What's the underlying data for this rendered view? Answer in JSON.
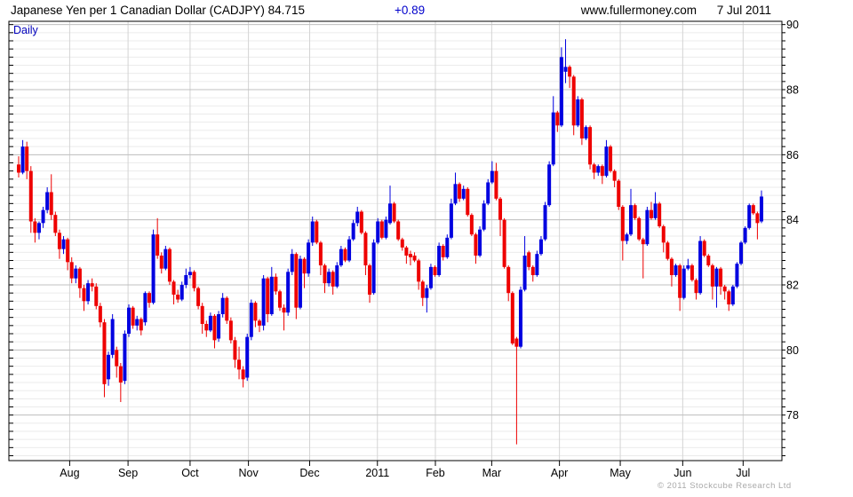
{
  "header": {
    "title": "Japanese Yen per 1 Canadian Dollar (CADJPY) 84.715",
    "change": "+0.89",
    "site": "www.fullermoney.com",
    "date": "7 Jul 2011"
  },
  "chart": {
    "timeframe_label": "Daily",
    "copyright": "© 2011 Stockcube Research Ltd"
  },
  "colors": {
    "up": "#0000e0",
    "down": "#ee0000",
    "accent_text": "#0000cc",
    "grid_major": "#c0c0c0",
    "grid_minor": "#ebebeb",
    "grid_vertical": "#d4d4d4",
    "border": "#000000",
    "copyright_gray": "#a9a9a9"
  },
  "chart_data": {
    "type": "candlestick",
    "title": "Japanese Yen per 1 Canadian Dollar (CADJPY)",
    "timeframe": "Daily",
    "last_price": 84.715,
    "change": "+0.89",
    "date": "7 Jul 2011",
    "y_axis": {
      "ticks": [
        78,
        80,
        82,
        84,
        86,
        88,
        90
      ],
      "minor_step": 0.25,
      "range": [
        76.6,
        90.1
      ],
      "side": "right"
    },
    "x_axis_ticks": [
      {
        "label": "Aug",
        "day": 12.5
      },
      {
        "label": "Sep",
        "day": 26.8
      },
      {
        "label": "Oct",
        "day": 42.0
      },
      {
        "label": "Nov",
        "day": 56.3
      },
      {
        "label": "Dec",
        "day": 71.3
      },
      {
        "label": "2011",
        "day": 87.9
      },
      {
        "label": "Feb",
        "day": 102.1
      },
      {
        "label": "Mar",
        "day": 115.9
      },
      {
        "label": "Apr",
        "day": 132.5
      },
      {
        "label": "May",
        "day": 147.4
      },
      {
        "label": "Jun",
        "day": 162.7
      },
      {
        "label": "Jul",
        "day": 177.5
      }
    ],
    "ohlc": [
      [
        85.7,
        85.95,
        85.3,
        85.45
      ],
      [
        85.45,
        86.45,
        85.4,
        86.25
      ],
      [
        86.25,
        86.4,
        85.25,
        85.5
      ],
      [
        85.5,
        85.65,
        83.6,
        83.95
      ],
      [
        83.95,
        84.05,
        83.3,
        83.6
      ],
      [
        83.6,
        83.95,
        83.4,
        83.9
      ],
      [
        83.9,
        84.4,
        83.75,
        84.3
      ],
      [
        84.3,
        85.0,
        84.2,
        84.85
      ],
      [
        84.85,
        85.4,
        84.0,
        84.15
      ],
      [
        84.15,
        84.25,
        83.5,
        83.6
      ],
      [
        83.6,
        83.7,
        82.8,
        83.1
      ],
      [
        83.1,
        83.5,
        82.95,
        83.4
      ],
      [
        83.4,
        83.45,
        82.45,
        82.7
      ],
      [
        82.7,
        82.85,
        82.05,
        82.2
      ],
      [
        82.2,
        82.6,
        82.05,
        82.5
      ],
      [
        82.5,
        82.55,
        81.6,
        81.9
      ],
      [
        81.9,
        82.0,
        81.2,
        81.5
      ],
      [
        81.5,
        82.15,
        81.4,
        82.05
      ],
      [
        82.05,
        82.2,
        81.8,
        81.95
      ],
      [
        81.95,
        82.05,
        81.25,
        81.35
      ],
      [
        81.35,
        81.45,
        80.7,
        80.85
      ],
      [
        80.85,
        80.95,
        78.55,
        78.95
      ],
      [
        79.1,
        79.95,
        78.9,
        79.85
      ],
      [
        79.85,
        81.1,
        79.75,
        80.95
      ],
      [
        80.0,
        80.1,
        79.15,
        79.5
      ],
      [
        79.5,
        79.6,
        78.4,
        79.0
      ],
      [
        79.05,
        80.6,
        78.95,
        80.5
      ],
      [
        80.5,
        81.4,
        80.4,
        81.3
      ],
      [
        81.3,
        81.35,
        80.65,
        80.75
      ],
      [
        80.75,
        81.05,
        80.6,
        80.95
      ],
      [
        80.95,
        81.0,
        80.45,
        80.6
      ],
      [
        80.85,
        81.8,
        80.75,
        81.75
      ],
      [
        81.75,
        81.8,
        81.3,
        81.45
      ],
      [
        81.45,
        83.7,
        81.4,
        83.55
      ],
      [
        83.55,
        84.05,
        82.8,
        82.9
      ],
      [
        82.9,
        83.0,
        82.35,
        82.5
      ],
      [
        82.5,
        83.2,
        82.45,
        83.1
      ],
      [
        83.1,
        83.15,
        82.0,
        82.1
      ],
      [
        82.1,
        82.15,
        81.4,
        81.7
      ],
      [
        81.7,
        81.85,
        81.45,
        81.55
      ],
      [
        81.55,
        82.1,
        81.5,
        82.0
      ],
      [
        82.0,
        82.5,
        81.9,
        82.3
      ],
      [
        82.3,
        82.55,
        82.2,
        82.4
      ],
      [
        82.4,
        82.45,
        81.8,
        81.9
      ],
      [
        81.9,
        81.95,
        81.25,
        81.35
      ],
      [
        81.35,
        81.45,
        80.5,
        80.8
      ],
      [
        80.8,
        80.9,
        80.4,
        80.6
      ],
      [
        80.6,
        81.15,
        80.55,
        81.05
      ],
      [
        81.05,
        81.1,
        80.05,
        80.3
      ],
      [
        80.35,
        81.2,
        80.25,
        81.1
      ],
      [
        81.1,
        81.75,
        81.0,
        81.6
      ],
      [
        81.6,
        81.65,
        80.8,
        80.9
      ],
      [
        80.9,
        81.0,
        80.2,
        80.3
      ],
      [
        80.3,
        80.4,
        79.45,
        79.7
      ],
      [
        79.7,
        80.1,
        79.1,
        79.4
      ],
      [
        79.4,
        79.5,
        78.85,
        79.1
      ],
      [
        79.15,
        80.5,
        79.05,
        80.4
      ],
      [
        80.4,
        81.55,
        80.3,
        81.45
      ],
      [
        81.45,
        81.5,
        80.7,
        80.9
      ],
      [
        80.9,
        80.95,
        80.55,
        80.75
      ],
      [
        80.75,
        82.3,
        80.6,
        82.2
      ],
      [
        82.2,
        82.25,
        80.85,
        81.1
      ],
      [
        81.1,
        82.55,
        81.05,
        82.25
      ],
      [
        82.25,
        82.35,
        81.7,
        81.8
      ],
      [
        81.8,
        81.85,
        81.2,
        81.3
      ],
      [
        81.3,
        81.4,
        80.6,
        81.15
      ],
      [
        81.15,
        82.5,
        81.05,
        82.4
      ],
      [
        82.4,
        83.1,
        82.3,
        82.95
      ],
      [
        82.95,
        83.0,
        80.95,
        81.3
      ],
      [
        81.3,
        82.9,
        81.25,
        82.8
      ],
      [
        82.8,
        82.85,
        81.9,
        82.35
      ],
      [
        82.35,
        83.4,
        82.25,
        83.3
      ],
      [
        83.3,
        84.1,
        83.2,
        83.95
      ],
      [
        83.95,
        84.0,
        83.25,
        83.3
      ],
      [
        83.3,
        83.35,
        82.3,
        82.6
      ],
      [
        82.6,
        82.65,
        81.75,
        82.05
      ],
      [
        82.05,
        82.5,
        81.95,
        82.4
      ],
      [
        82.4,
        82.45,
        81.7,
        81.95
      ],
      [
        81.95,
        82.7,
        81.9,
        82.6
      ],
      [
        82.6,
        83.2,
        82.55,
        83.1
      ],
      [
        83.1,
        83.15,
        82.7,
        82.75
      ],
      [
        82.75,
        83.5,
        82.7,
        83.4
      ],
      [
        83.4,
        84.0,
        83.35,
        83.9
      ],
      [
        83.9,
        84.4,
        83.8,
        84.25
      ],
      [
        84.25,
        84.3,
        83.55,
        83.6
      ],
      [
        83.6,
        83.65,
        82.3,
        82.6
      ],
      [
        82.6,
        82.65,
        81.45,
        81.7
      ],
      [
        81.75,
        83.4,
        81.7,
        83.3
      ],
      [
        83.3,
        84.05,
        83.25,
        83.95
      ],
      [
        83.95,
        84.0,
        83.4,
        83.45
      ],
      [
        83.45,
        84.1,
        83.4,
        84.0
      ],
      [
        83.9,
        85.05,
        83.85,
        84.5
      ],
      [
        84.5,
        84.55,
        83.9,
        83.95
      ],
      [
        83.95,
        84.0,
        83.35,
        83.4
      ],
      [
        83.4,
        83.45,
        83.05,
        83.15
      ],
      [
        83.15,
        83.2,
        82.65,
        82.9
      ],
      [
        82.95,
        83.05,
        82.6,
        82.85
      ],
      [
        82.9,
        83.0,
        82.7,
        82.75
      ],
      [
        82.75,
        82.8,
        81.85,
        82.1
      ],
      [
        82.1,
        82.15,
        81.35,
        81.6
      ],
      [
        81.6,
        82.0,
        81.15,
        81.9
      ],
      [
        81.9,
        82.65,
        81.85,
        82.55
      ],
      [
        82.55,
        82.6,
        82.25,
        82.3
      ],
      [
        82.3,
        83.3,
        82.25,
        83.2
      ],
      [
        83.2,
        83.25,
        82.75,
        82.85
      ],
      [
        82.85,
        83.55,
        82.8,
        83.45
      ],
      [
        83.45,
        84.65,
        83.4,
        84.5
      ],
      [
        84.5,
        85.45,
        84.45,
        85.1
      ],
      [
        85.1,
        85.15,
        84.55,
        84.65
      ],
      [
        84.65,
        85.05,
        84.6,
        84.95
      ],
      [
        84.95,
        85.0,
        84.1,
        84.15
      ],
      [
        84.15,
        84.2,
        83.5,
        83.55
      ],
      [
        83.55,
        83.6,
        82.65,
        82.9
      ],
      [
        82.9,
        83.8,
        82.85,
        83.7
      ],
      [
        83.7,
        84.6,
        83.65,
        84.5
      ],
      [
        84.5,
        85.25,
        84.45,
        85.15
      ],
      [
        85.15,
        85.8,
        85.1,
        85.5
      ],
      [
        85.5,
        85.75,
        84.6,
        84.65
      ],
      [
        84.65,
        84.7,
        83.5,
        84.0
      ],
      [
        84.0,
        84.05,
        82.5,
        82.55
      ],
      [
        82.55,
        82.6,
        81.5,
        81.75
      ],
      [
        81.75,
        81.8,
        80.15,
        80.2
      ],
      [
        80.35,
        80.4,
        77.1,
        80.1
      ],
      [
        80.1,
        81.95,
        80.05,
        81.85
      ],
      [
        81.85,
        83.5,
        81.8,
        82.9
      ],
      [
        83.0,
        83.05,
        82.45,
        82.55
      ],
      [
        82.55,
        82.6,
        82.1,
        82.3
      ],
      [
        82.3,
        83.05,
        82.25,
        82.95
      ],
      [
        82.95,
        83.5,
        82.9,
        83.4
      ],
      [
        83.4,
        84.55,
        83.35,
        84.45
      ],
      [
        84.45,
        85.8,
        84.4,
        85.7
      ],
      [
        85.7,
        87.8,
        85.65,
        87.3
      ],
      [
        87.3,
        87.35,
        86.7,
        86.9
      ],
      [
        86.9,
        89.3,
        86.85,
        89.0
      ],
      [
        88.55,
        89.55,
        88.2,
        88.7
      ],
      [
        88.7,
        88.75,
        88.05,
        88.4
      ],
      [
        88.4,
        88.45,
        86.6,
        86.9
      ],
      [
        86.9,
        87.8,
        86.85,
        87.7
      ],
      [
        87.7,
        87.75,
        86.3,
        86.5
      ],
      [
        86.5,
        86.9,
        86.45,
        86.85
      ],
      [
        86.85,
        86.9,
        85.55,
        85.7
      ],
      [
        85.7,
        85.75,
        85.25,
        85.45
      ],
      [
        85.45,
        85.7,
        85.35,
        85.65
      ],
      [
        85.65,
        85.7,
        85.1,
        85.35
      ],
      [
        85.35,
        86.45,
        85.3,
        86.25
      ],
      [
        86.25,
        86.3,
        85.45,
        85.5
      ],
      [
        85.5,
        85.55,
        85.0,
        85.2
      ],
      [
        85.2,
        85.25,
        84.3,
        84.4
      ],
      [
        84.4,
        84.45,
        82.75,
        83.35
      ],
      [
        83.35,
        83.6,
        83.25,
        83.55
      ],
      [
        83.55,
        84.95,
        83.5,
        84.45
      ],
      [
        84.45,
        84.5,
        84.0,
        84.05
      ],
      [
        84.05,
        84.1,
        83.35,
        83.4
      ],
      [
        83.4,
        83.45,
        82.2,
        83.25
      ],
      [
        83.25,
        84.4,
        83.2,
        84.3
      ],
      [
        84.3,
        84.55,
        84.0,
        84.05
      ],
      [
        84.05,
        84.85,
        84.0,
        84.5
      ],
      [
        84.5,
        84.55,
        83.75,
        83.8
      ],
      [
        83.8,
        83.85,
        83.0,
        83.3
      ],
      [
        83.3,
        83.35,
        82.75,
        82.8
      ],
      [
        82.8,
        82.85,
        81.95,
        82.3
      ],
      [
        82.3,
        82.65,
        82.25,
        82.6
      ],
      [
        82.6,
        82.65,
        81.2,
        81.6
      ],
      [
        81.6,
        82.6,
        81.55,
        82.5
      ],
      [
        82.5,
        82.8,
        82.45,
        82.6
      ],
      [
        82.6,
        82.65,
        82.1,
        82.15
      ],
      [
        82.15,
        82.2,
        81.55,
        81.75
      ],
      [
        81.75,
        83.5,
        81.7,
        83.35
      ],
      [
        83.35,
        83.4,
        82.85,
        82.9
      ],
      [
        82.9,
        82.95,
        82.55,
        82.6
      ],
      [
        82.6,
        82.65,
        81.55,
        81.95
      ],
      [
        81.95,
        82.55,
        81.3,
        82.5
      ],
      [
        82.5,
        82.55,
        81.7,
        81.95
      ],
      [
        81.95,
        82.0,
        81.55,
        81.8
      ],
      [
        81.8,
        81.85,
        81.2,
        81.4
      ],
      [
        81.4,
        82.0,
        81.35,
        81.95
      ],
      [
        81.95,
        82.7,
        81.9,
        82.65
      ],
      [
        82.65,
        83.35,
        82.6,
        83.3
      ],
      [
        83.3,
        83.8,
        83.25,
        83.75
      ],
      [
        83.75,
        84.5,
        83.7,
        84.45
      ],
      [
        84.45,
        84.5,
        84.15,
        84.2
      ],
      [
        84.2,
        84.25,
        83.4,
        83.9
      ],
      [
        83.95,
        84.9,
        83.9,
        84.715
      ]
    ]
  }
}
